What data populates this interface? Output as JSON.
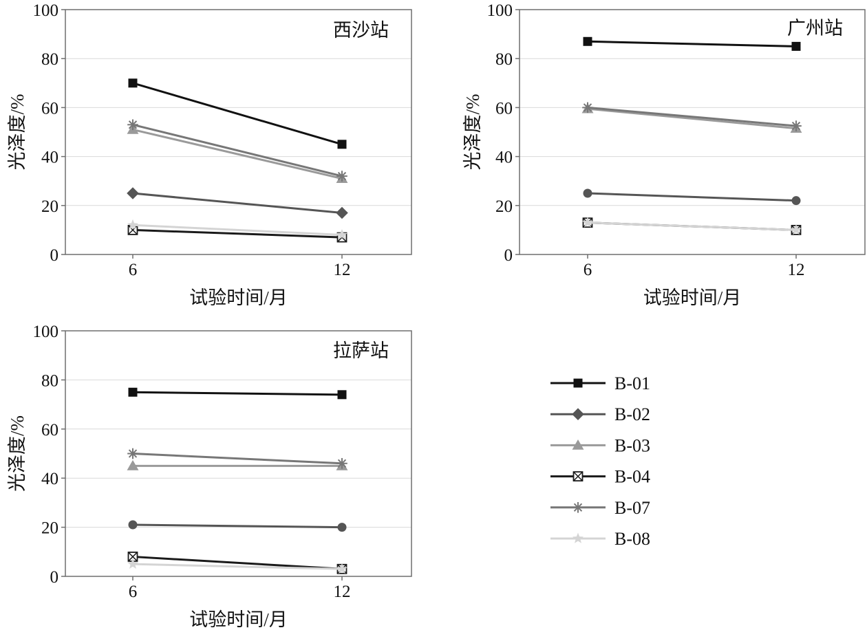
{
  "chart_data": [
    {
      "type": "line",
      "title": "西沙站",
      "xlabel": "试验时间/月",
      "ylabel": "光泽度/%",
      "categories": [
        "6",
        "12"
      ],
      "yticks": [
        "0",
        "20",
        "40",
        "60",
        "80",
        "100"
      ],
      "ylim": [
        0,
        100
      ],
      "grid": true,
      "series": [
        {
          "name": "B-01",
          "values": [
            70,
            45
          ]
        },
        {
          "name": "B-02",
          "values": [
            25,
            17
          ]
        },
        {
          "name": "B-03",
          "values": [
            51,
            31
          ]
        },
        {
          "name": "B-04",
          "values": [
            10,
            7
          ]
        },
        {
          "name": "B-07",
          "values": [
            53,
            32
          ]
        },
        {
          "name": "B-08",
          "values": [
            12,
            8
          ]
        }
      ]
    },
    {
      "type": "line",
      "title": "广州站",
      "xlabel": "试验时间/月",
      "ylabel": "光泽度/%",
      "categories": [
        "6",
        "12"
      ],
      "yticks": [
        "0",
        "20",
        "40",
        "60",
        "80",
        "100"
      ],
      "ylim": [
        0,
        100
      ],
      "grid": true,
      "series": [
        {
          "name": "B-01",
          "values": [
            87,
            85
          ]
        },
        {
          "name": "B-02",
          "values": [
            25,
            22
          ]
        },
        {
          "name": "B-03",
          "values": [
            59.5,
            51.5
          ]
        },
        {
          "name": "B-04",
          "values": [
            13,
            10
          ]
        },
        {
          "name": "B-07",
          "values": [
            60,
            52.5
          ]
        },
        {
          "name": "B-08",
          "values": [
            13,
            10
          ]
        }
      ]
    },
    {
      "type": "line",
      "title": "拉萨站",
      "xlabel": "试验时间/月",
      "ylabel": "光泽度/%",
      "categories": [
        "6",
        "12"
      ],
      "yticks": [
        "0",
        "20",
        "40",
        "60",
        "80",
        "100"
      ],
      "ylim": [
        0,
        100
      ],
      "grid": true,
      "series": [
        {
          "name": "B-01",
          "values": [
            75,
            74
          ]
        },
        {
          "name": "B-02",
          "values": [
            21,
            20
          ]
        },
        {
          "name": "B-03",
          "values": [
            45,
            45
          ]
        },
        {
          "name": "B-04",
          "values": [
            8,
            3
          ]
        },
        {
          "name": "B-07",
          "values": [
            50,
            46
          ]
        },
        {
          "name": "B-08",
          "values": [
            5,
            3
          ]
        }
      ]
    }
  ],
  "legend": {
    "items": [
      {
        "name": "B-01",
        "marker": "square",
        "color": "#111111"
      },
      {
        "name": "B-02",
        "marker": "diamond",
        "color": "#555555"
      },
      {
        "name": "B-03",
        "marker": "triangle",
        "color": "#9a9a9a"
      },
      {
        "name": "B-04",
        "marker": "crossed-square",
        "color": "#1a1a1a"
      },
      {
        "name": "B-07",
        "marker": "asterisk",
        "color": "#777777"
      },
      {
        "name": "B-08",
        "marker": "star",
        "color": "#d4d4d4"
      }
    ]
  },
  "series_styles": {
    "B-01": {
      "color": "#111111",
      "marker": "square"
    },
    "B-02": {
      "color": "#555555",
      "marker": "diamond"
    },
    "B-03": {
      "color": "#9a9a9a",
      "marker": "triangle"
    },
    "B-04": {
      "color": "#1a1a1a",
      "marker": "crossed-square"
    },
    "B-07": {
      "color": "#777777",
      "marker": "asterisk"
    },
    "B-08": {
      "color": "#d4d4d4",
      "marker": "star"
    }
  }
}
